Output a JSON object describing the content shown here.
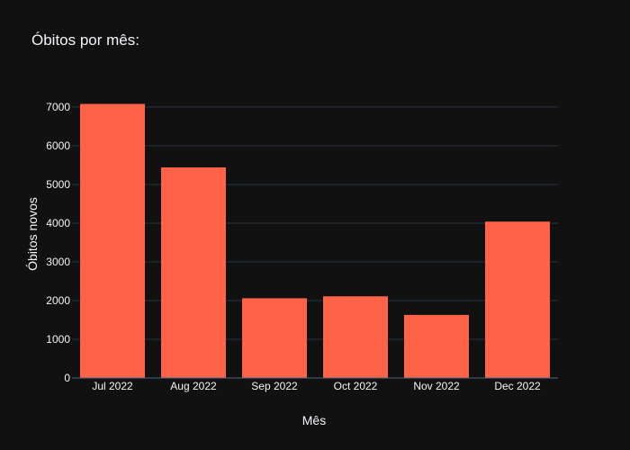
{
  "chart_data": {
    "type": "bar",
    "title": "Óbitos por mês:",
    "xlabel": "Mês",
    "ylabel": "Óbitos novos",
    "categories": [
      "Jul 2022",
      "Aug 2022",
      "Sep 2022",
      "Oct 2022",
      "Nov 2022",
      "Dec 2022"
    ],
    "values": [
      7080,
      5440,
      2060,
      2110,
      1630,
      4040
    ],
    "ylim": [
      0,
      7440
    ],
    "yticks": [
      0,
      1000,
      2000,
      3000,
      4000,
      5000,
      6000,
      7000
    ],
    "grid": true,
    "legend": "none",
    "colors": {
      "background": "#111111",
      "bar": "#ff6347",
      "grid": "#283442",
      "text": "#f2f5fa",
      "axis_line": "#506784"
    }
  }
}
